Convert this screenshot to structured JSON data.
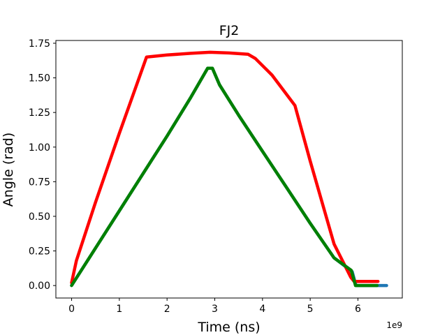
{
  "chart_data": {
    "type": "line",
    "title": "FJ2",
    "xlabel": "Time (ns)",
    "ylabel": "Angle (rad)",
    "x_offset_label": "1e9",
    "xlim": [
      -0.33,
      6.93
    ],
    "ylim": [
      -0.09,
      1.77
    ],
    "x_ticks": [
      0,
      1,
      2,
      3,
      4,
      5,
      6
    ],
    "x_tick_labels": [
      "0",
      "1",
      "2",
      "3",
      "4",
      "5",
      "6"
    ],
    "y_ticks": [
      0.0,
      0.25,
      0.5,
      0.75,
      1.0,
      1.25,
      1.5,
      1.75
    ],
    "y_tick_labels": [
      "0.00",
      "0.25",
      "0.50",
      "0.75",
      "1.00",
      "1.25",
      "1.50",
      "1.75"
    ],
    "grid": false,
    "legend": "none",
    "series": [
      {
        "color": "#1f77b4",
        "points": [
          [
            0.0,
            0.0
          ],
          [
            0.5,
            0.27
          ],
          [
            1.0,
            0.54
          ],
          [
            1.5,
            0.81
          ],
          [
            2.0,
            1.08
          ],
          [
            2.5,
            1.36
          ],
          [
            2.85,
            1.57
          ],
          [
            2.95,
            1.57
          ],
          [
            3.1,
            1.45
          ],
          [
            3.5,
            1.23
          ],
          [
            4.0,
            0.97
          ],
          [
            4.5,
            0.71
          ],
          [
            5.0,
            0.45
          ],
          [
            5.5,
            0.2
          ],
          [
            5.88,
            0.1
          ],
          [
            5.96,
            0.0
          ],
          [
            6.6,
            0.0
          ]
        ]
      },
      {
        "color": "#ff0000",
        "points": [
          [
            0.0,
            0.02
          ],
          [
            0.1,
            0.18
          ],
          [
            0.5,
            0.6
          ],
          [
            1.0,
            1.1
          ],
          [
            1.57,
            1.65
          ],
          [
            2.0,
            1.665
          ],
          [
            2.5,
            1.677
          ],
          [
            2.9,
            1.685
          ],
          [
            3.3,
            1.68
          ],
          [
            3.7,
            1.67
          ],
          [
            3.85,
            1.64
          ],
          [
            4.2,
            1.52
          ],
          [
            4.68,
            1.3
          ],
          [
            5.0,
            0.9
          ],
          [
            5.5,
            0.3
          ],
          [
            5.85,
            0.06
          ],
          [
            5.92,
            0.03
          ],
          [
            6.42,
            0.03
          ]
        ]
      },
      {
        "color": "#008000",
        "points": [
          [
            0.0,
            0.0
          ],
          [
            0.5,
            0.27
          ],
          [
            1.0,
            0.54
          ],
          [
            1.5,
            0.81
          ],
          [
            2.0,
            1.08
          ],
          [
            2.5,
            1.36
          ],
          [
            2.85,
            1.57
          ],
          [
            2.95,
            1.57
          ],
          [
            3.1,
            1.45
          ],
          [
            3.5,
            1.23
          ],
          [
            4.0,
            0.97
          ],
          [
            4.5,
            0.71
          ],
          [
            5.0,
            0.45
          ],
          [
            5.5,
            0.2
          ],
          [
            5.86,
            0.11
          ],
          [
            5.95,
            0.0
          ],
          [
            6.4,
            0.0
          ]
        ]
      }
    ]
  }
}
